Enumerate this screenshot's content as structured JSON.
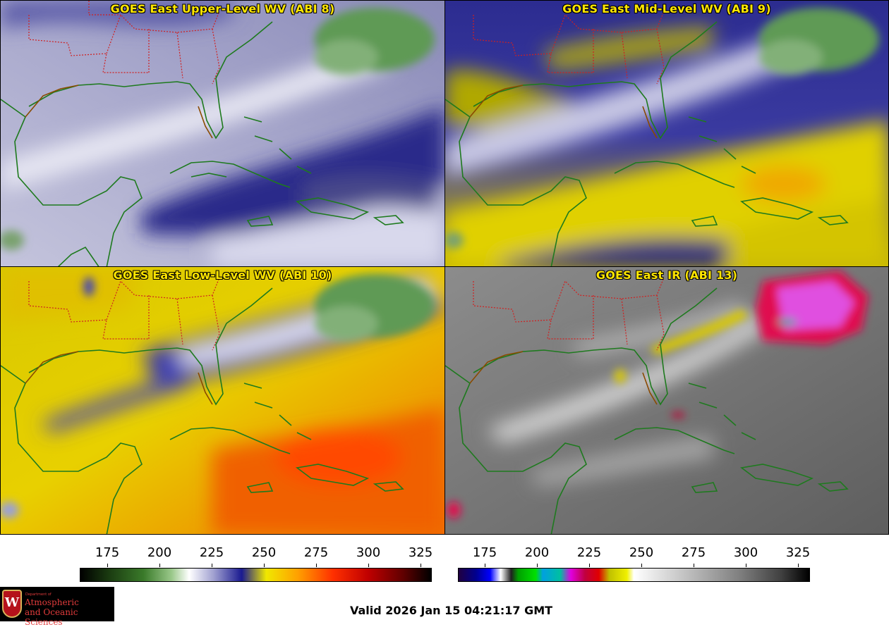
{
  "panels": [
    {
      "title": "GOES East Upper-Level WV (ABI 8)"
    },
    {
      "title": "GOES East Mid-Level WV (ABI 9)"
    },
    {
      "title": "GOES East Low-Level WV (ABI 10)"
    },
    {
      "title": "GOES East IR (ABI 13)"
    }
  ],
  "colorbars": {
    "wv": {
      "ticks": [
        "175",
        "200",
        "225",
        "250",
        "275",
        "300",
        "325"
      ]
    },
    "ir": {
      "ticks": [
        "175",
        "200",
        "225",
        "250",
        "275",
        "300",
        "325"
      ]
    }
  },
  "logo": {
    "seal": "W",
    "department": "Department of",
    "line1": "Atmospheric",
    "line2": "and Oceanic Sciences"
  },
  "valid_time": "Valid 2026 Jan 15 04:21:17 GMT"
}
